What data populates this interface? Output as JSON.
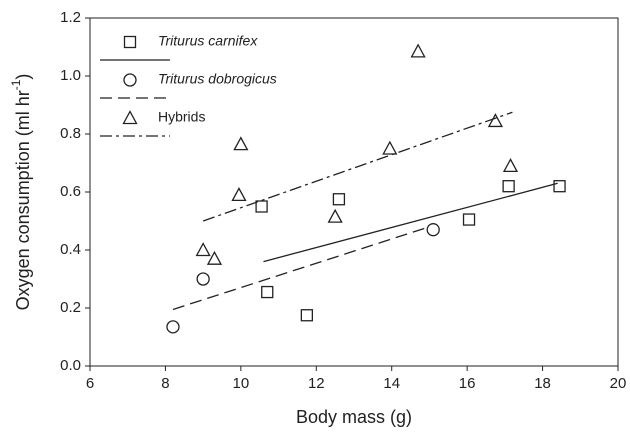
{
  "chart_data": {
    "type": "scatter",
    "xlabel": "Body mass (g)",
    "ylabel": {
      "text": "Oxygen consumption (ml hr",
      "sup": "-1",
      "tail": ")"
    },
    "xlim": [
      6,
      20
    ],
    "xticks": [
      6,
      8,
      10,
      12,
      14,
      16,
      18,
      20
    ],
    "ylim": [
      0,
      1.2
    ],
    "yticks": [
      {
        "value": 0,
        "label": "0.0"
      },
      {
        "value": 0.2,
        "label": "0.2"
      },
      {
        "value": 0.4,
        "label": "0.4"
      },
      {
        "value": 0.6,
        "label": "0.6"
      },
      {
        "value": 0.8,
        "label": "0.8"
      },
      {
        "value": 1,
        "label": "1.0"
      },
      {
        "value": 1.2,
        "label": "1.2"
      }
    ],
    "legend": "upper left",
    "series": [
      {
        "name": "Triturus carnifex",
        "italic": true,
        "marker": "square",
        "color": "#222",
        "x": [
          10.55,
          10.7,
          11.75,
          12.6,
          16.05,
          17.1,
          18.45
        ],
        "values": [
          0.55,
          0.255,
          0.175,
          0.575,
          0.505,
          0.62,
          0.62
        ],
        "fit": {
          "line_style": "solid",
          "x": [
            10.6,
            18.4
          ],
          "values": [
            0.36,
            0.63
          ]
        }
      },
      {
        "name": "Triturus dobrogicus",
        "italic": true,
        "marker": "circle",
        "color": "#222",
        "x": [
          8.2,
          9.0,
          15.1
        ],
        "values": [
          0.135,
          0.3,
          0.47
        ],
        "fit": {
          "line_style": "dashed",
          "x": [
            8.2,
            15.0
          ],
          "values": [
            0.195,
            0.48
          ]
        }
      },
      {
        "name": "Hybrids",
        "italic": false,
        "marker": "triangle",
        "color": "#222",
        "x": [
          9.0,
          9.3,
          9.95,
          10.0,
          12.5,
          13.95,
          14.7,
          16.75,
          17.15
        ],
        "values": [
          0.4,
          0.37,
          0.59,
          0.765,
          0.515,
          0.75,
          1.085,
          0.845,
          0.69
        ],
        "fit": {
          "line_style": "dashdot",
          "x": [
            9.0,
            17.2
          ],
          "values": [
            0.5,
            0.875
          ]
        }
      }
    ]
  }
}
